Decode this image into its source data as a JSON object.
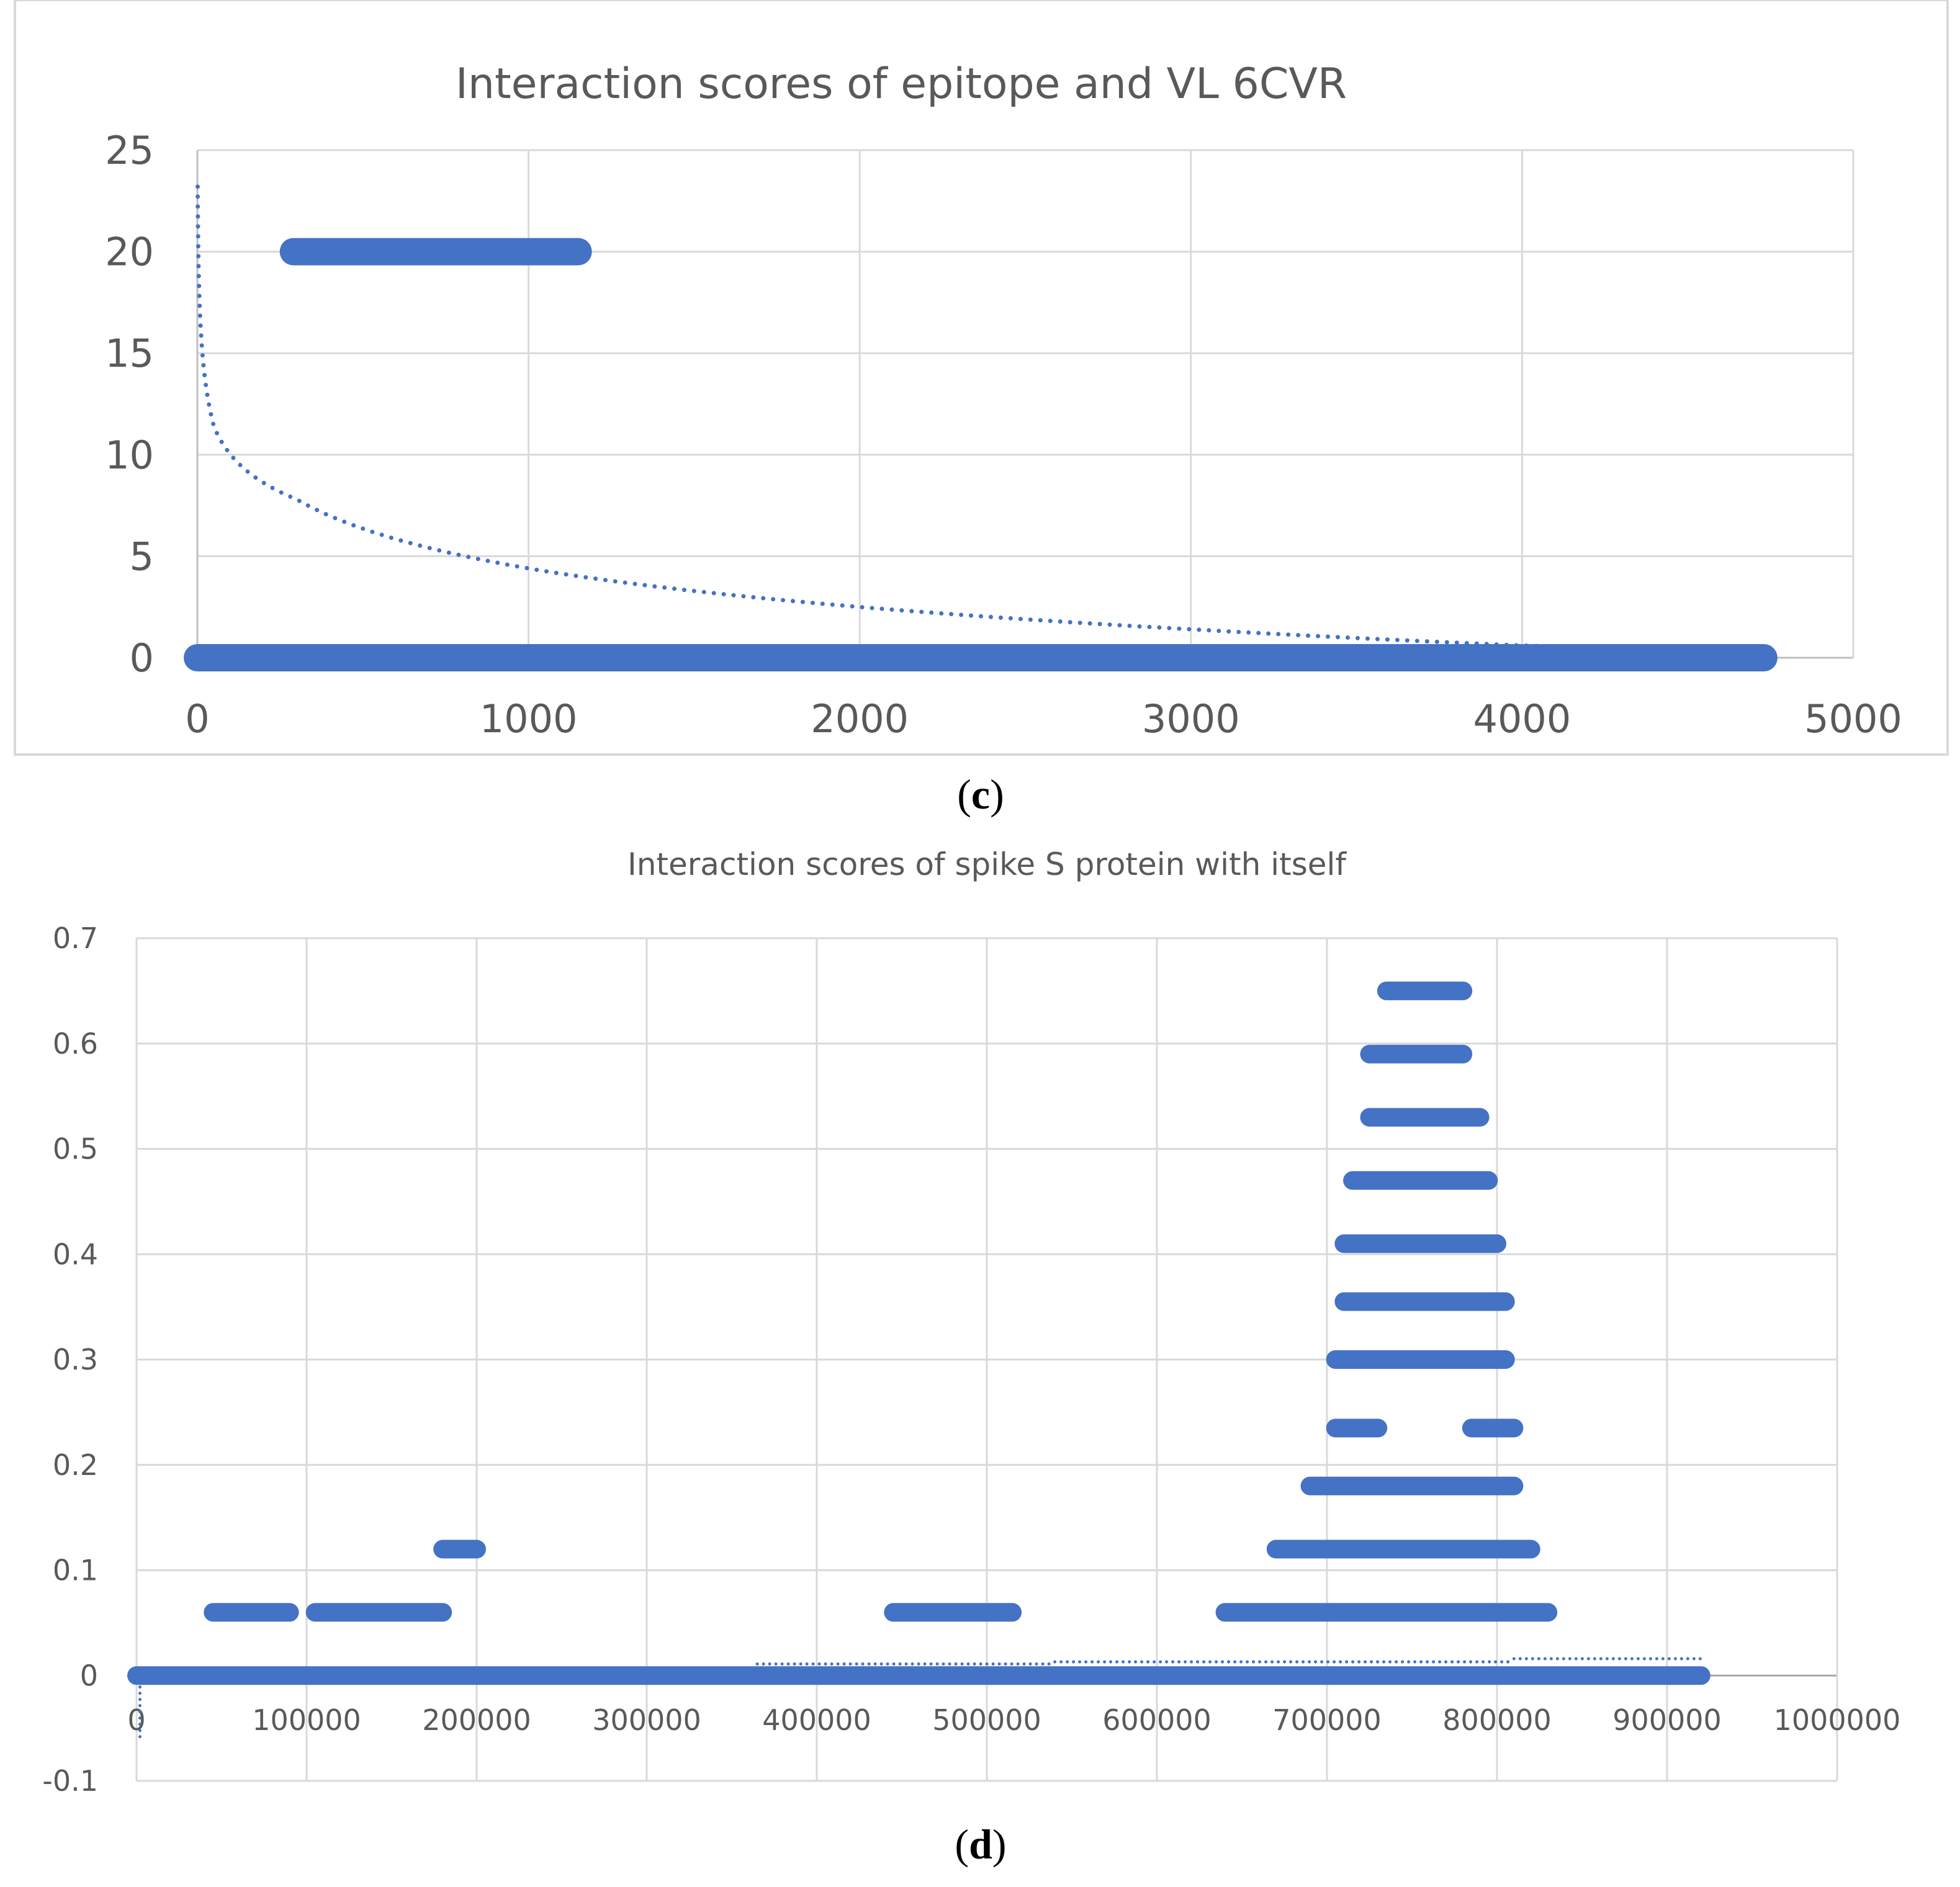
{
  "colors": {
    "series": "#4472C4",
    "grid": "#d9d9d9",
    "axis": "#bfbfbf",
    "text": "#595959",
    "frame": "#d9d9d9"
  },
  "panels": {
    "c": {
      "open": "(",
      "letter": "c",
      "close": ")"
    },
    "d": {
      "open": "(",
      "letter": "d",
      "close": ")"
    }
  },
  "chart_data": [
    {
      "type": "scatter",
      "title": "Interaction scores of epitope  and VL 6CVR",
      "xlabel": "",
      "ylabel": "",
      "xlim": [
        0,
        5000
      ],
      "ylim": [
        0,
        25
      ],
      "xticks": [
        0,
        1000,
        2000,
        3000,
        4000,
        5000
      ],
      "yticks": [
        0,
        5,
        10,
        15,
        20,
        25
      ],
      "grid": true,
      "legend": "none",
      "series": [
        {
          "points_as_runs": [
            {
              "y": 20,
              "x_start": 290,
              "x_end": 1150
            },
            {
              "y": 0,
              "x_start": 0,
              "x_end": 4730
            }
          ]
        }
      ],
      "trendline": {
        "style": "dotted",
        "kind": "logarithmic",
        "x_start": 1,
        "x_end": 4100,
        "y_start": 23.2,
        "points": [
          [
            50,
            11.4
          ],
          [
            300,
            7.8
          ],
          [
            1000,
            4.4
          ],
          [
            2000,
            2.5
          ],
          [
            3000,
            1.4
          ],
          [
            4000,
            0.6
          ]
        ]
      }
    },
    {
      "type": "scatter",
      "title": "Interaction scores  of spike S protein with itself",
      "xlabel": "",
      "ylabel": "",
      "xlim": [
        0,
        1000000
      ],
      "ylim": [
        -0.1,
        0.7
      ],
      "xticks": [
        0,
        100000,
        200000,
        300000,
        400000,
        500000,
        600000,
        700000,
        800000,
        900000,
        1000000
      ],
      "yticks": [
        -0.1,
        0,
        0.1,
        0.2,
        0.3,
        0.4,
        0.5,
        0.6,
        0.7
      ],
      "grid": true,
      "legend": "none",
      "series": [
        {
          "points_as_runs": [
            {
              "y": 0.0,
              "x_start": 0,
              "x_end": 920000
            },
            {
              "y": 0.06,
              "x_start": 45000,
              "x_end": 90000
            },
            {
              "y": 0.06,
              "x_start": 105000,
              "x_end": 180000
            },
            {
              "y": 0.12,
              "x_start": 180000,
              "x_end": 200000
            },
            {
              "y": 0.06,
              "x_start": 445000,
              "x_end": 515000
            },
            {
              "y": 0.06,
              "x_start": 640000,
              "x_end": 830000
            },
            {
              "y": 0.12,
              "x_start": 670000,
              "x_end": 820000
            },
            {
              "y": 0.18,
              "x_start": 690000,
              "x_end": 810000
            },
            {
              "y": 0.235,
              "x_start": 705000,
              "x_end": 730000
            },
            {
              "y": 0.235,
              "x_start": 785000,
              "x_end": 810000
            },
            {
              "y": 0.3,
              "x_start": 705000,
              "x_end": 805000
            },
            {
              "y": 0.355,
              "x_start": 710000,
              "x_end": 805000
            },
            {
              "y": 0.41,
              "x_start": 710000,
              "x_end": 800000
            },
            {
              "y": 0.47,
              "x_start": 715000,
              "x_end": 795000
            },
            {
              "y": 0.53,
              "x_start": 725000,
              "x_end": 790000
            },
            {
              "y": 0.59,
              "x_start": 725000,
              "x_end": 780000
            },
            {
              "y": 0.65,
              "x_start": 735000,
              "x_end": 780000
            }
          ]
        }
      ],
      "trendline": {
        "style": "dotted",
        "segments": [
          {
            "x_start": 365000,
            "x_end": 540000,
            "y": 0.011
          },
          {
            "x_start": 540000,
            "x_end": 810000,
            "y": 0.013
          },
          {
            "x_start": 810000,
            "x_end": 920000,
            "y": 0.016
          }
        ],
        "dip": {
          "x": 2000,
          "y_from": -0.005,
          "y_to": -0.06
        }
      }
    }
  ]
}
